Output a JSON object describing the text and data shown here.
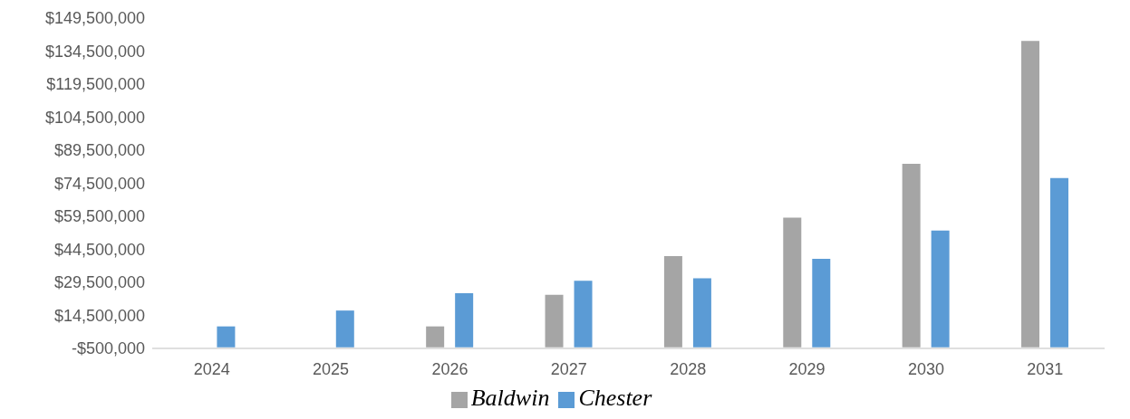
{
  "chart_data": {
    "type": "bar",
    "categories": [
      "2024",
      "2025",
      "2026",
      "2027",
      "2028",
      "2029",
      "2030",
      "2031"
    ],
    "series": [
      {
        "name": "Baldwin",
        "color": "#a5a5a5",
        "values": [
          null,
          null,
          9500000,
          23800000,
          41400000,
          58900000,
          83300000,
          139100000
        ]
      },
      {
        "name": "Chester",
        "color": "#5b9bd5",
        "values": [
          9500000,
          16700000,
          24600000,
          30200000,
          31400000,
          40200000,
          53000000,
          76900000
        ]
      }
    ],
    "ylim": [
      -500000,
      149500000
    ],
    "yticks": [
      {
        "value": -500000,
        "label": "-$500,000"
      },
      {
        "value": 14500000,
        "label": "$14,500,000"
      },
      {
        "value": 29500000,
        "label": "$29,500,000"
      },
      {
        "value": 44500000,
        "label": "$44,500,000"
      },
      {
        "value": 59500000,
        "label": "$59,500,000"
      },
      {
        "value": 74500000,
        "label": "$74,500,000"
      },
      {
        "value": 89500000,
        "label": "$89,500,000"
      },
      {
        "value": 104500000,
        "label": "$104,500,000"
      },
      {
        "value": 119500000,
        "label": "$119,500,000"
      },
      {
        "value": 134500000,
        "label": "$134,500,000"
      },
      {
        "value": 149500000,
        "label": "$149,500,000"
      }
    ],
    "grid": false,
    "legend": "bottom"
  }
}
